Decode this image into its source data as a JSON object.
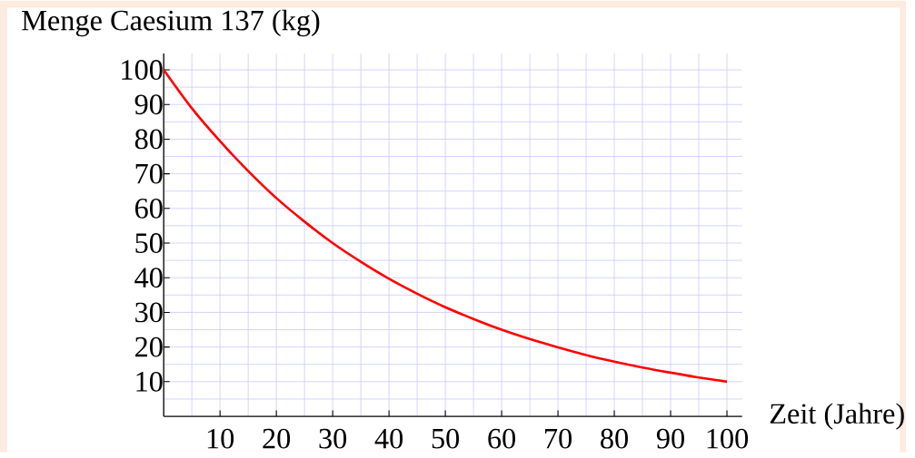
{
  "chart_data": {
    "type": "line",
    "xlabel": "Zeit (Jahre)",
    "ylabel": "Menge Caesium 137 (kg)",
    "x": [
      0,
      5,
      10,
      15,
      20,
      25,
      30,
      35,
      40,
      45,
      50,
      55,
      60,
      65,
      70,
      75,
      80,
      85,
      90,
      95,
      100
    ],
    "values": [
      100,
      88.9,
      79.4,
      70.8,
      63.0,
      56.2,
      50.0,
      44.6,
      39.7,
      35.4,
      31.5,
      28.1,
      25.0,
      22.3,
      19.9,
      17.7,
      15.8,
      14.1,
      12.6,
      11.2,
      10.0
    ],
    "color": "#ff0000",
    "xlim": [
      0,
      102.7
    ],
    "ylim": [
      0,
      104.7
    ],
    "xticks": [
      10,
      20,
      30,
      40,
      50,
      60,
      70,
      80,
      90,
      100
    ],
    "yticks": [
      10,
      20,
      30,
      40,
      50,
      60,
      70,
      80,
      90,
      100
    ],
    "grid": true,
    "line_style": "solid"
  }
}
